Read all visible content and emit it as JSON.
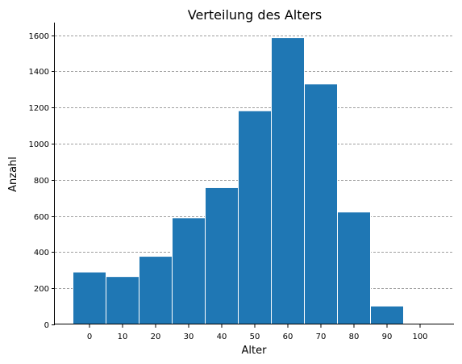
{
  "chart_data": {
    "type": "bar",
    "title": "Verteilung des Alters",
    "xlabel": "Alter",
    "ylabel": "Anzahl",
    "categories": [
      "0",
      "10",
      "20",
      "30",
      "40",
      "50",
      "60",
      "70",
      "80",
      "90",
      "100"
    ],
    "values": [
      290,
      265,
      377,
      590,
      757,
      1182,
      1587,
      1331,
      622,
      102,
      3
    ],
    "ylim": [
      0,
      1670
    ],
    "yticks": [
      "0",
      "200",
      "400",
      "600",
      "800",
      "1000",
      "1200",
      "1400",
      "1600"
    ],
    "ytick_values": [
      0,
      200,
      400,
      600,
      800,
      1000,
      1200,
      1400,
      1600
    ],
    "grid": "horizontal dashed",
    "bar_color": "#1f77b4"
  }
}
